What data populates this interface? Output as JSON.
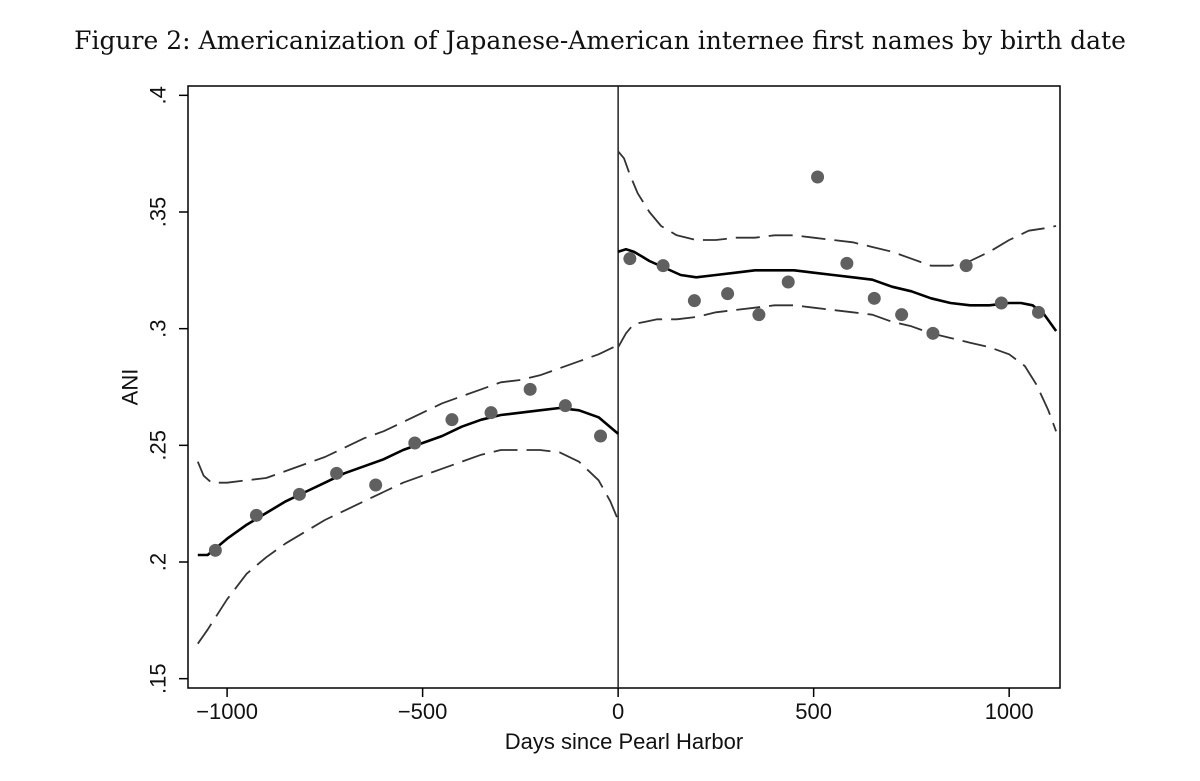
{
  "figure": {
    "caption": "Figure 2: Americanization of Japanese-American internee first names by birth date"
  },
  "chart_data": {
    "type": "scatter",
    "xlabel": "Days since Pearl Harbor",
    "ylabel": "ANI",
    "xlim": [
      -1100,
      1130
    ],
    "ylim": [
      0.146,
      0.404
    ],
    "x_ticks": [
      -1000,
      -500,
      0,
      500,
      1000
    ],
    "x_tick_labels": [
      "−1000",
      "−500",
      "0",
      "500",
      "1000"
    ],
    "y_ticks": [
      0.15,
      0.2,
      0.25,
      0.3,
      0.35,
      0.4
    ],
    "y_tick_labels": [
      ".15",
      ".2",
      ".25",
      ".3",
      ".35",
      ".4"
    ],
    "vertical_reference_line_x": 0,
    "grid": false,
    "legend": "none",
    "colors": {
      "points": "#606060",
      "fit": "#000000",
      "ci": "#333333",
      "frame": "#000000"
    },
    "series": [
      {
        "kind": "points",
        "x": [
          -1030,
          -925,
          -815,
          -720,
          -620,
          -520,
          -425,
          -325,
          -225,
          -135,
          -45,
          30,
          115,
          195,
          280,
          360,
          435,
          510,
          585,
          655,
          725,
          805,
          890,
          980,
          1075
        ],
        "y": [
          0.205,
          0.22,
          0.229,
          0.238,
          0.233,
          0.251,
          0.261,
          0.264,
          0.274,
          0.267,
          0.254,
          0.33,
          0.327,
          0.312,
          0.315,
          0.306,
          0.32,
          0.365,
          0.328,
          0.313,
          0.306,
          0.298,
          0.327,
          0.311,
          0.307
        ]
      },
      {
        "kind": "fit",
        "segments": [
          {
            "x": [
              -1075,
              -1050,
              -1000,
              -950,
              -900,
              -850,
              -800,
              -750,
              -700,
              -650,
              -600,
              -550,
              -500,
              -450,
              -400,
              -350,
              -300,
              -250,
              -200,
              -150,
              -100,
              -50,
              0
            ],
            "y": [
              0.203,
              0.203,
              0.21,
              0.216,
              0.221,
              0.226,
              0.23,
              0.234,
              0.238,
              0.241,
              0.244,
              0.248,
              0.251,
              0.254,
              0.258,
              0.261,
              0.263,
              0.264,
              0.265,
              0.266,
              0.265,
              0.262,
              0.255
            ]
          },
          {
            "x": [
              0,
              20,
              40,
              60,
              80,
              120,
              160,
              200,
              250,
              300,
              350,
              400,
              450,
              500,
              550,
              600,
              650,
              700,
              750,
              800,
              850,
              900,
              950,
              1000,
              1030,
              1060,
              1090,
              1120
            ],
            "y": [
              0.333,
              0.334,
              0.333,
              0.331,
              0.329,
              0.326,
              0.323,
              0.322,
              0.323,
              0.324,
              0.325,
              0.325,
              0.325,
              0.324,
              0.323,
              0.322,
              0.321,
              0.318,
              0.316,
              0.313,
              0.311,
              0.31,
              0.31,
              0.311,
              0.311,
              0.31,
              0.306,
              0.299
            ]
          }
        ]
      },
      {
        "kind": "ci_upper",
        "segments": [
          {
            "x": [
              -1075,
              -1060,
              -1040,
              -1000,
              -950,
              -900,
              -850,
              -800,
              -750,
              -700,
              -650,
              -600,
              -550,
              -500,
              -450,
              -400,
              -350,
              -300,
              -250,
              -200,
              -150,
              -100,
              -50,
              0
            ],
            "y": [
              0.243,
              0.237,
              0.234,
              0.234,
              0.235,
              0.236,
              0.239,
              0.242,
              0.245,
              0.249,
              0.253,
              0.256,
              0.26,
              0.264,
              0.268,
              0.271,
              0.274,
              0.277,
              0.278,
              0.28,
              0.283,
              0.286,
              0.289,
              0.293
            ]
          },
          {
            "x": [
              0,
              15,
              30,
              50,
              80,
              110,
              150,
              200,
              250,
              300,
              350,
              400,
              450,
              500,
              550,
              600,
              650,
              700,
              750,
              800,
              850,
              900,
              950,
              1000,
              1050,
              1090,
              1120
            ],
            "y": [
              0.376,
              0.373,
              0.366,
              0.358,
              0.35,
              0.344,
              0.34,
              0.338,
              0.338,
              0.339,
              0.339,
              0.34,
              0.34,
              0.339,
              0.338,
              0.337,
              0.335,
              0.333,
              0.33,
              0.327,
              0.327,
              0.329,
              0.333,
              0.338,
              0.342,
              0.343,
              0.344
            ]
          }
        ]
      },
      {
        "kind": "ci_lower",
        "segments": [
          {
            "x": [
              -1075,
              -1050,
              -1000,
              -950,
              -900,
              -850,
              -800,
              -750,
              -700,
              -650,
              -600,
              -550,
              -500,
              -450,
              -400,
              -350,
              -300,
              -250,
              -200,
              -150,
              -100,
              -50,
              -20,
              0
            ],
            "y": [
              0.165,
              0.171,
              0.184,
              0.195,
              0.202,
              0.208,
              0.213,
              0.218,
              0.222,
              0.226,
              0.23,
              0.234,
              0.237,
              0.24,
              0.243,
              0.246,
              0.248,
              0.248,
              0.248,
              0.247,
              0.243,
              0.235,
              0.226,
              0.218
            ]
          },
          {
            "x": [
              0,
              20,
              40,
              70,
              100,
              150,
              200,
              250,
              300,
              350,
              400,
              450,
              500,
              550,
              600,
              650,
              700,
              750,
              800,
              850,
              900,
              950,
              1000,
              1040,
              1070,
              1100,
              1120
            ],
            "y": [
              0.292,
              0.298,
              0.302,
              0.303,
              0.304,
              0.304,
              0.305,
              0.307,
              0.308,
              0.309,
              0.31,
              0.31,
              0.309,
              0.308,
              0.307,
              0.306,
              0.303,
              0.301,
              0.298,
              0.296,
              0.294,
              0.292,
              0.289,
              0.284,
              0.276,
              0.265,
              0.256
            ]
          }
        ]
      }
    ]
  }
}
